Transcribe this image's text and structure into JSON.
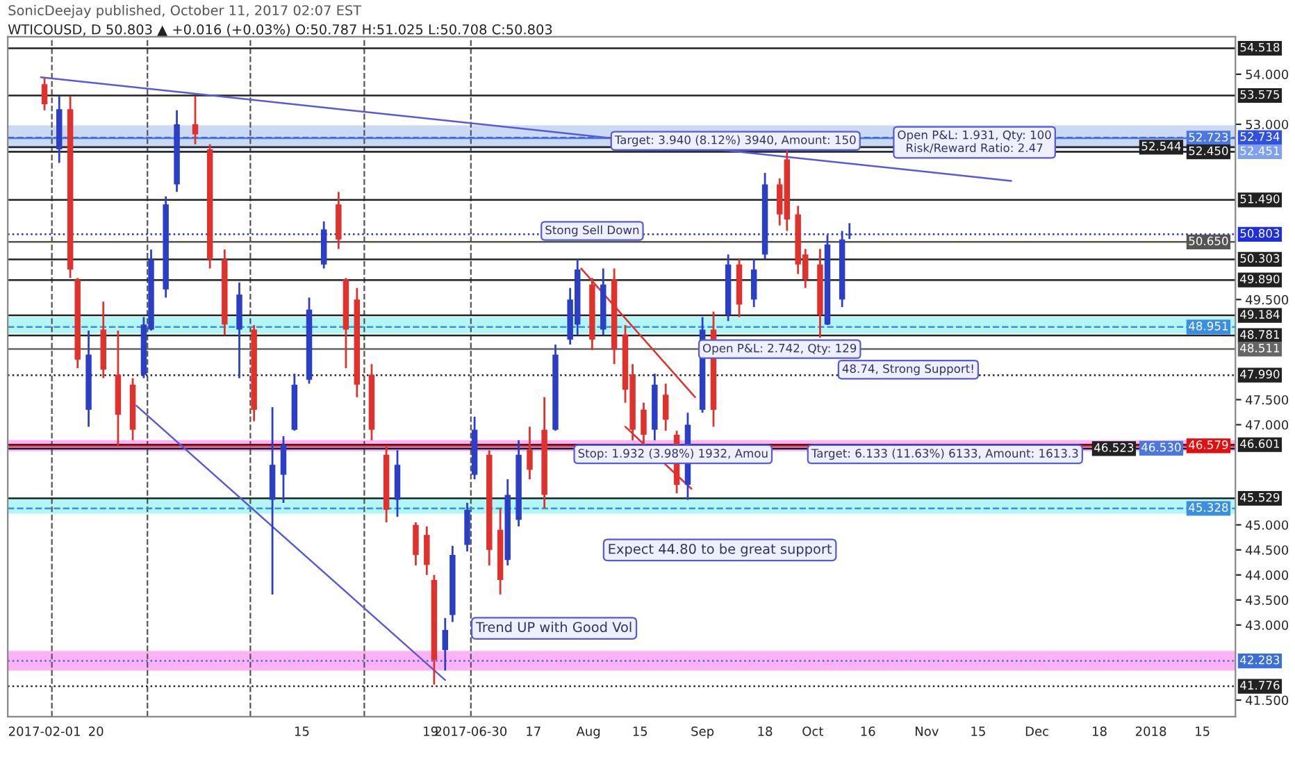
{
  "chart_data": {
    "type": "candlestick",
    "title": "SonicDeejay published, October 11, 2017 02:07 EST",
    "subtitle": "WTICOUSD, D 50.803 ▲ +0.016 (+0.03%) O:50.787 H:51.025 L:50.708 C:50.803",
    "x": [
      "2017-03-06",
      "2017-03-10",
      "2017-03-13",
      "2017-03-15",
      "2017-03-18",
      "2017-03-22",
      "2017-03-26",
      "2017-03-30",
      "2017-04-02",
      "2017-04-04",
      "2017-04-08",
      "2017-04-11",
      "2017-04-16",
      "2017-04-20",
      "2017-04-24",
      "2017-04-28",
      "2017-05-02",
      "2017-05-07",
      "2017-05-10",
      "2017-05-13",
      "2017-05-17",
      "2017-05-21",
      "2017-05-25",
      "2017-05-27",
      "2017-05-30",
      "2017-06-03",
      "2017-06-07",
      "2017-06-10",
      "2017-06-15",
      "2017-06-18",
      "2017-06-20",
      "2017-06-23",
      "2017-06-25",
      "2017-06-29",
      "2017-07-01",
      "2017-07-05",
      "2017-07-08",
      "2017-07-10",
      "2017-07-13",
      "2017-07-16",
      "2017-07-20",
      "2017-07-23",
      "2017-07-27",
      "2017-07-29",
      "2017-08-02",
      "2017-08-05",
      "2017-08-08",
      "2017-08-11",
      "2017-08-13",
      "2017-08-16",
      "2017-08-19",
      "2017-08-22",
      "2017-08-25",
      "2017-08-28",
      "2017-09-01",
      "2017-09-04",
      "2017-09-08",
      "2017-09-11",
      "2017-09-15",
      "2017-09-18",
      "2017-09-22",
      "2017-09-24",
      "2017-09-27",
      "2017-09-29",
      "2017-10-03",
      "2017-10-05",
      "2017-10-09",
      "2017-10-11"
    ],
    "ohlc": [
      [
        53.8,
        53.94,
        53.28,
        53.4
      ],
      [
        52.5,
        53.56,
        52.23,
        53.3
      ],
      [
        53.3,
        53.56,
        49.93,
        50.1
      ],
      [
        49.9,
        49.93,
        48.13,
        48.3
      ],
      [
        47.3,
        48.88,
        46.96,
        48.4
      ],
      [
        48.9,
        49.46,
        47.93,
        48.1
      ],
      [
        48.0,
        48.88,
        46.58,
        47.2
      ],
      [
        47.8,
        47.93,
        46.69,
        46.9
      ],
      [
        48.0,
        49.15,
        47.93,
        49.0
      ],
      [
        48.9,
        50.5,
        48.88,
        50.3
      ],
      [
        49.7,
        51.56,
        49.54,
        51.4
      ],
      [
        51.8,
        53.28,
        51.65,
        53.0
      ],
      [
        53.0,
        53.56,
        52.6,
        52.8
      ],
      [
        52.5,
        52.6,
        50.12,
        50.3
      ],
      [
        50.3,
        50.5,
        48.79,
        49.0
      ],
      [
        48.9,
        49.84,
        47.93,
        49.6
      ],
      [
        48.9,
        48.99,
        47.07,
        47.3
      ],
      [
        45.5,
        47.35,
        43.61,
        46.2
      ],
      [
        46.0,
        46.77,
        45.44,
        46.6
      ],
      [
        46.9,
        48.02,
        46.88,
        47.8
      ],
      [
        47.9,
        49.54,
        47.82,
        49.3
      ],
      [
        50.2,
        51.06,
        50.12,
        50.9
      ],
      [
        51.4,
        51.65,
        50.51,
        50.7
      ],
      [
        49.9,
        49.93,
        48.13,
        48.9
      ],
      [
        49.5,
        49.73,
        47.55,
        47.8
      ],
      [
        48.0,
        48.21,
        46.69,
        46.9
      ],
      [
        46.4,
        46.58,
        45.05,
        45.3
      ],
      [
        45.5,
        46.49,
        45.16,
        46.2
      ],
      [
        45.0,
        45.05,
        44.19,
        44.4
      ],
      [
        44.8,
        44.97,
        44.0,
        44.2
      ],
      [
        43.9,
        44.0,
        41.81,
        42.3
      ],
      [
        42.5,
        43.14,
        42.09,
        42.9
      ],
      [
        43.2,
        44.58,
        43.06,
        44.4
      ],
      [
        44.6,
        45.44,
        44.47,
        45.3
      ],
      [
        46.0,
        47.16,
        45.91,
        46.9
      ],
      [
        46.4,
        46.49,
        44.19,
        44.5
      ],
      [
        44.9,
        45.33,
        43.61,
        43.9
      ],
      [
        44.3,
        45.91,
        44.19,
        45.6
      ],
      [
        45.1,
        46.69,
        44.97,
        46.4
      ],
      [
        46.5,
        46.96,
        45.91,
        46.1
      ],
      [
        46.9,
        47.55,
        45.33,
        45.6
      ],
      [
        46.9,
        48.6,
        46.88,
        48.4
      ],
      [
        48.7,
        49.73,
        48.6,
        49.5
      ],
      [
        49.0,
        50.31,
        48.79,
        50.1
      ],
      [
        49.8,
        49.93,
        48.49,
        48.7
      ],
      [
        48.9,
        50.12,
        48.79,
        49.8
      ],
      [
        49.9,
        50.12,
        48.21,
        48.5
      ],
      [
        48.8,
        48.99,
        47.44,
        47.7
      ],
      [
        48.0,
        48.21,
        46.69,
        46.9
      ],
      [
        47.3,
        47.44,
        46.58,
        46.8
      ],
      [
        46.9,
        48.02,
        46.69,
        47.8
      ],
      [
        47.6,
        47.82,
        46.88,
        47.1
      ],
      [
        46.8,
        46.88,
        45.63,
        45.8
      ],
      [
        45.8,
        47.24,
        45.5,
        47.0
      ],
      [
        47.3,
        49.15,
        47.24,
        48.9
      ],
      [
        48.9,
        49.26,
        46.96,
        47.3
      ],
      [
        49.2,
        50.4,
        49.07,
        50.2
      ],
      [
        50.2,
        50.31,
        49.15,
        49.4
      ],
      [
        49.5,
        50.31,
        49.35,
        50.1
      ],
      [
        50.4,
        52.03,
        50.31,
        51.8
      ],
      [
        51.8,
        51.92,
        50.98,
        51.2
      ],
      [
        52.3,
        52.5,
        50.87,
        51.1
      ],
      [
        51.2,
        51.37,
        50.01,
        50.2
      ],
      [
        50.4,
        50.51,
        49.73,
        49.9
      ],
      [
        50.2,
        50.51,
        48.74,
        49.2
      ],
      [
        49.0,
        50.79,
        48.99,
        50.6
      ],
      [
        49.5,
        50.87,
        49.35,
        50.7
      ],
      [
        50.787,
        51.025,
        50.708,
        50.803
      ]
    ],
    "colors": [
      "#e0322d",
      "#2b3fc6",
      "#e0322d",
      "#e0322d",
      "#2b3fc6",
      "#e0322d",
      "#e0322d",
      "#e0322d",
      "#2b3fc6",
      "#2b3fc6",
      "#2b3fc6",
      "#2b3fc6",
      "#e0322d",
      "#e0322d",
      "#e0322d",
      "#2b3fc6",
      "#e0322d",
      "#2b3fc6",
      "#2b3fc6",
      "#2b3fc6",
      "#2b3fc6",
      "#2b3fc6",
      "#e0322d",
      "#e0322d",
      "#e0322d",
      "#e0322d",
      "#e0322d",
      "#2b3fc6",
      "#e0322d",
      "#e0322d",
      "#e0322d",
      "#2b3fc6",
      "#2b3fc6",
      "#2b3fc6",
      "#2b3fc6",
      "#e0322d",
      "#e0322d",
      "#2b3fc6",
      "#2b3fc6",
      "#e0322d",
      "#e0322d",
      "#2b3fc6",
      "#2b3fc6",
      "#2b3fc6",
      "#e0322d",
      "#2b3fc6",
      "#e0322d",
      "#e0322d",
      "#e0322d",
      "#e0322d",
      "#2b3fc6",
      "#e0322d",
      "#e0322d",
      "#2b3fc6",
      "#2b3fc6",
      "#e0322d",
      "#2b3fc6",
      "#e0322d",
      "#2b3fc6",
      "#2b3fc6",
      "#e0322d",
      "#e0322d",
      "#e0322d",
      "#e0322d",
      "#e0322d",
      "#2b3fc6",
      "#2b3fc6",
      "#2b3fc6"
    ],
    "series": [
      {
        "type": "line",
        "color": "#5a5ad2",
        "x": [
          "2017-03-05",
          "2017-11-24"
        ],
        "values": [
          53.94,
          51.87
        ]
      },
      {
        "type": "line",
        "color": "#5a5ad2",
        "x": [
          "2017-03-31",
          "2017-06-23"
        ],
        "values": [
          47.38,
          41.9
        ]
      },
      {
        "type": "line",
        "color": "#e0322d",
        "x": [
          "2017-07-30",
          "2017-08-30"
        ],
        "values": [
          50.12,
          47.55
        ]
      },
      {
        "type": "line",
        "color": "#e0322d",
        "x": [
          "2017-08-11",
          "2017-08-29"
        ],
        "values": [
          46.96,
          45.72
        ]
      }
    ],
    "xlim": [
      "2017-02-24",
      "2018-01-24"
    ],
    "xticks": [
      {
        "value": "2017-03-06",
        "label": "2017-02-01"
      },
      {
        "value": "2017-03-20",
        "label": "20"
      },
      {
        "value": "2017-05-15",
        "label": "15"
      },
      {
        "value": "2017-06-19",
        "label": "19"
      },
      {
        "value": "2017-06-30",
        "label": "2017-06-30"
      },
      {
        "value": "2017-07-17",
        "label": "17"
      },
      {
        "value": "2017-08-01",
        "label": "Aug"
      },
      {
        "value": "2017-08-15",
        "label": "15"
      },
      {
        "value": "2017-09-01",
        "label": "Sep"
      },
      {
        "value": "2017-09-18",
        "label": "18"
      },
      {
        "value": "2017-10-01",
        "label": "Oct"
      },
      {
        "value": "2017-10-16",
        "label": "16"
      },
      {
        "value": "2017-11-01",
        "label": "Nov"
      },
      {
        "value": "2017-11-15",
        "label": "15"
      },
      {
        "value": "2017-12-01",
        "label": "Dec"
      },
      {
        "value": "2017-12-18",
        "label": "18"
      },
      {
        "value": "2018-01-01",
        "label": "2018"
      },
      {
        "value": "2018-01-15",
        "label": "15"
      }
    ],
    "ylim": [
      41.17,
      54.75
    ],
    "yticks": [
      {
        "value": 54,
        "label": "54.000"
      },
      {
        "value": 53,
        "label": "53.000"
      },
      {
        "value": 49.5,
        "label": "49.500"
      },
      {
        "value": 47.5,
        "label": "47.500"
      },
      {
        "value": 47,
        "label": "47.000"
      },
      {
        "value": 45,
        "label": "45.000"
      },
      {
        "value": 44.5,
        "label": "44.500"
      },
      {
        "value": 44,
        "label": "44.000"
      },
      {
        "value": 43.5,
        "label": "43.500"
      },
      {
        "value": 43,
        "label": "43.000"
      },
      {
        "value": 41.5,
        "label": "41.500"
      }
    ],
    "grid": false,
    "legend": false,
    "bands": [
      {
        "axis": "y",
        "from": 52.5,
        "to": 52.98,
        "color": "#a9c0ea"
      },
      {
        "axis": "y",
        "from": 48.82,
        "to": 49.15,
        "color": "#7ff0ee"
      },
      {
        "axis": "y",
        "from": 46.47,
        "to": 46.69,
        "color": "#ff7ff0"
      },
      {
        "axis": "y",
        "from": 45.22,
        "to": 45.55,
        "color": "#7ff0ee"
      },
      {
        "axis": "y",
        "from": 42.09,
        "to": 42.48,
        "color": "#ff7ff0"
      }
    ],
    "ref_lines": [
      {
        "axis": "x",
        "value": "2017-03-08",
        "color": "#555555",
        "line_style": "dashed"
      },
      {
        "axis": "x",
        "value": "2017-04-03",
        "color": "#555555",
        "line_style": "dashed"
      },
      {
        "axis": "x",
        "value": "2017-05-01",
        "color": "#555555",
        "line_style": "dashed"
      },
      {
        "axis": "x",
        "value": "2017-06-01",
        "color": "#555555",
        "line_style": "dashed"
      },
      {
        "axis": "x",
        "value": "2017-06-30",
        "color": "#555555",
        "line_style": "dashed"
      },
      {
        "axis": "y",
        "value": 54.518,
        "label": "54.518",
        "color": "#222222",
        "line_style": "solid"
      },
      {
        "axis": "y",
        "value": 53.575,
        "label": "53.575",
        "color": "#222222",
        "line_style": "solid"
      },
      {
        "axis": "y",
        "value": 52.734,
        "label": "52.734",
        "color": "#3050e0",
        "line_style": "dashed"
      },
      {
        "axis": "y",
        "value": 52.723,
        "label": "52.723",
        "color": "#4a78e0",
        "line_style": "solid"
      },
      {
        "axis": "y",
        "value": 52.544,
        "label": "52.544",
        "color": "#222222",
        "line_style": "solid"
      },
      {
        "axis": "y",
        "value": 52.451,
        "label": "52.451",
        "color": "#7fa0f0",
        "line_style": "solid"
      },
      {
        "axis": "y",
        "value": 52.45,
        "label": "52.450",
        "color": "#222222",
        "line_style": "solid"
      },
      {
        "axis": "y",
        "value": 51.49,
        "label": "51.490",
        "color": "#222222",
        "line_style": "solid"
      },
      {
        "axis": "y",
        "value": 50.803,
        "label": "50.803",
        "color": "#1c2fd8",
        "line_style": "dotted"
      },
      {
        "axis": "y",
        "value": 50.65,
        "label": "50.650",
        "color": "#555555",
        "line_style": "solid"
      },
      {
        "axis": "y",
        "value": 50.303,
        "label": "50.303",
        "color": "#222222",
        "line_style": "solid"
      },
      {
        "axis": "y",
        "value": 49.89,
        "label": "49.890",
        "color": "#222222",
        "line_style": "solid"
      },
      {
        "axis": "y",
        "value": 49.184,
        "label": "49.184",
        "color": "#222222",
        "line_style": "solid"
      },
      {
        "axis": "y",
        "value": 48.951,
        "label": "48.951",
        "color": "#3a8fe0",
        "line_style": "dashed"
      },
      {
        "axis": "y",
        "value": 48.781,
        "label": "48.781",
        "color": "#222222",
        "line_style": "solid"
      },
      {
        "axis": "y",
        "value": 48.511,
        "label": "48.511",
        "color": "#666666",
        "line_style": "solid"
      },
      {
        "axis": "y",
        "value": 47.99,
        "label": "47.990",
        "color": "#222222",
        "line_style": "dotted"
      },
      {
        "axis": "y",
        "value": 46.601,
        "label": "46.601",
        "color": "#222222",
        "line_style": "solid"
      },
      {
        "axis": "y",
        "value": 46.579,
        "label": "46.579",
        "color": "#e01010",
        "line_style": "solid"
      },
      {
        "axis": "y",
        "value": 46.53,
        "label": "46.530",
        "color": "#4a78e0",
        "line_style": "solid"
      },
      {
        "axis": "y",
        "value": 46.523,
        "label": "46.523",
        "color": "#222222",
        "line_style": "solid"
      },
      {
        "axis": "y",
        "value": 45.529,
        "label": "45.529",
        "color": "#222222",
        "line_style": "solid"
      },
      {
        "axis": "y",
        "value": 45.328,
        "label": "45.328",
        "color": "#3a8fe0",
        "line_style": "dashed"
      },
      {
        "axis": "y",
        "value": 42.283,
        "label": "42.283",
        "color": "#3a6fd8",
        "line_style": "dotted"
      },
      {
        "axis": "y",
        "value": 41.776,
        "label": "41.776",
        "color": "#222222",
        "line_style": "dotted"
      }
    ],
    "annotations": [
      {
        "text": "Stong Sell Down",
        "x": "2017-08-02",
        "y": 50.87
      },
      "Trend UP with Good Vol",
      "Expect 44.80 to be great support",
      {
        "text": "48.74, Strong Support!",
        "x": "2017-10-27",
        "y": 48.1
      },
      {
        "text": "Target: 3.940 (8.12%) 3940, Amount: 150",
        "x": "2017-09-10",
        "y": 52.67
      },
      {
        "text": "Open P&L: 1.931, Qty: 100\nRisk/Reward Ratio: 2.47",
        "x": "2017-11-14",
        "y": 52.64
      },
      {
        "text": "Open P&L: 2.742, Qty: 129",
        "x": "2017-09-22",
        "y": 48.51
      },
      {
        "text": "Stop: 1.932 (3.98%) 1932, Amou",
        "x": "2017-08-24",
        "y": 46.41
      },
      {
        "text": "Target: 6.133 (11.63%) 6133, Amount: 1613.3",
        "x": "2017-11-06",
        "y": 46.41
      }
    ]
  }
}
